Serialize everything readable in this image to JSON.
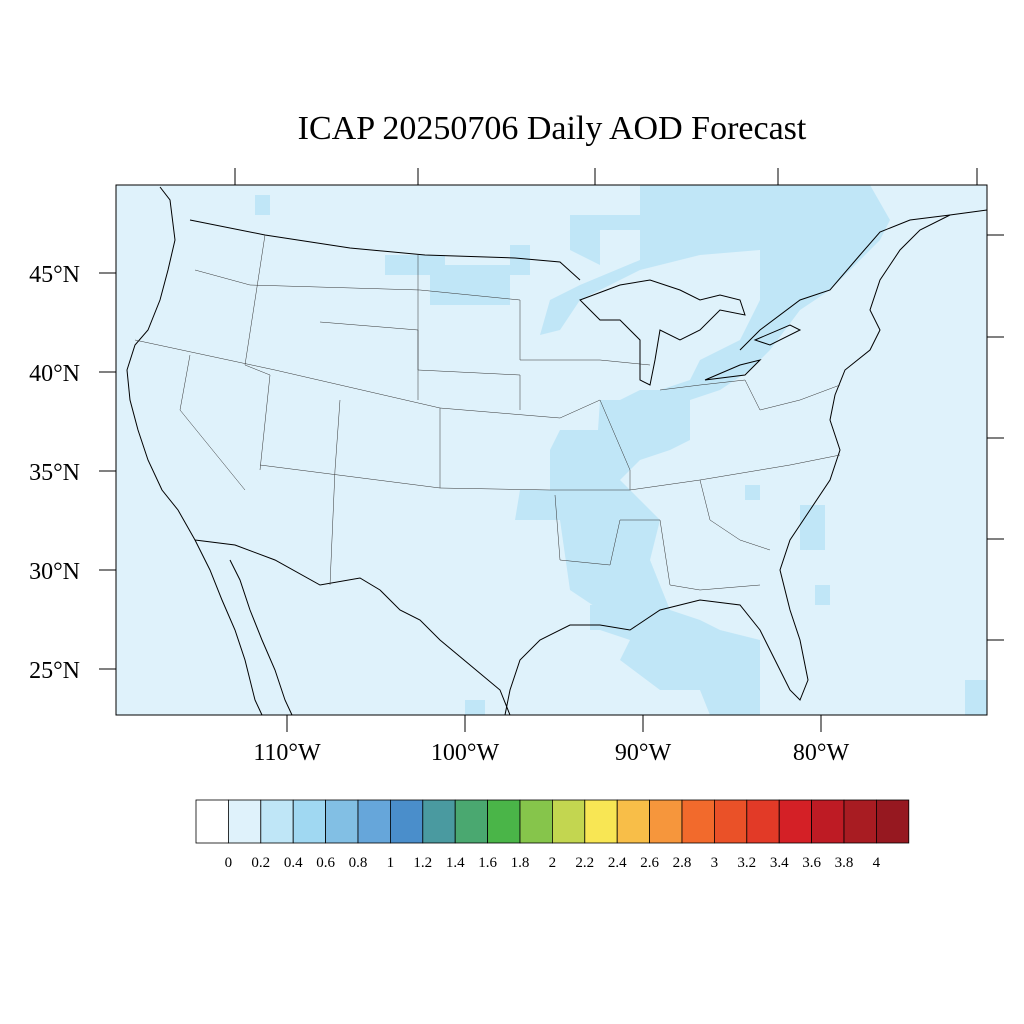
{
  "title": "ICAP 20250706 Daily AOD Forecast",
  "map": {
    "lat_ticks": [
      "45°N",
      "40°N",
      "35°N",
      "30°N",
      "25°N"
    ],
    "lon_ticks": [
      "110°W",
      "100°W",
      "90°W",
      "80°W"
    ],
    "ocean_color": "#dff2fb",
    "plume_color": "#c0e6f7"
  },
  "colorbar": {
    "labels": [
      "0",
      "0.2",
      "0.4",
      "0.6",
      "0.8",
      "1",
      "1.2",
      "1.4",
      "1.6",
      "1.8",
      "2",
      "2.2",
      "2.4",
      "2.6",
      "2.8",
      "3",
      "3.2",
      "3.4",
      "3.6",
      "3.8",
      "4"
    ],
    "colors": [
      "#ffffff",
      "#dff2fb",
      "#bfe6f7",
      "#a0d8f2",
      "#82bfe4",
      "#66a6da",
      "#4a8ecb",
      "#4a9aa0",
      "#4aa870",
      "#4ab548",
      "#86c54b",
      "#c3d650",
      "#f8e654",
      "#f8be48",
      "#f6963c",
      "#f26a2c",
      "#ea5128",
      "#e23a27",
      "#d42026",
      "#be1b24",
      "#a81c22",
      "#961820"
    ]
  }
}
